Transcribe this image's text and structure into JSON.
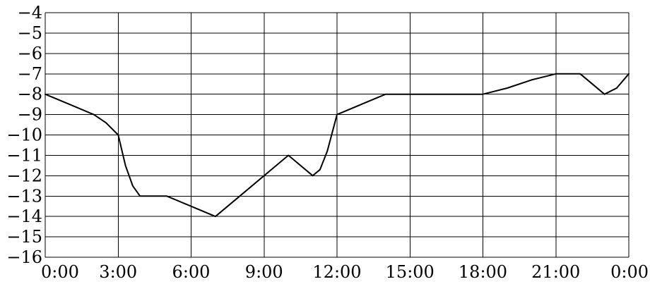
{
  "chart_data": {
    "type": "line",
    "title": "",
    "xlabel": "",
    "ylabel": "",
    "grid": true,
    "xlim": [
      0,
      24
    ],
    "ylim": [
      -16,
      -4
    ],
    "x_ticks": [
      0,
      3,
      6,
      9,
      12,
      15,
      18,
      21,
      24
    ],
    "x_tick_labels": [
      "0:00",
      "3:00",
      "6:00",
      "9:00",
      "12:00",
      "15:00",
      "18:00",
      "21:00",
      "0:00"
    ],
    "y_ticks": [
      -4,
      -5,
      -6,
      -7,
      -8,
      -9,
      -10,
      -11,
      -12,
      -13,
      -14,
      -15,
      -16
    ],
    "y_tick_labels": [
      "−4",
      "−5",
      "−6",
      "−7",
      "−8",
      "−9",
      "−10",
      "−11",
      "−12",
      "−13",
      "−14",
      "−15",
      "−16"
    ],
    "series": [
      {
        "x": [
          0,
          1,
          2,
          2.5,
          3,
          3.3,
          3.6,
          3.9,
          4.2,
          5,
          6,
          7,
          8,
          9,
          10,
          10.5,
          11,
          11.3,
          11.6,
          12,
          13,
          14,
          15,
          16,
          17,
          18,
          19,
          20,
          21,
          22,
          22.5,
          23,
          23.5,
          24
        ],
        "y": [
          -8,
          -8.5,
          -9,
          -9.4,
          -10,
          -11.5,
          -12.5,
          -13,
          -13,
          -13,
          -13.5,
          -14,
          -13,
          -12,
          -11,
          -11.5,
          -12,
          -11.7,
          -10.8,
          -9,
          -8.5,
          -8,
          -8,
          -8,
          -8,
          -8,
          -7.7,
          -7.3,
          -7,
          -7,
          -7.5,
          -8,
          -7.7,
          -7
        ]
      }
    ]
  }
}
